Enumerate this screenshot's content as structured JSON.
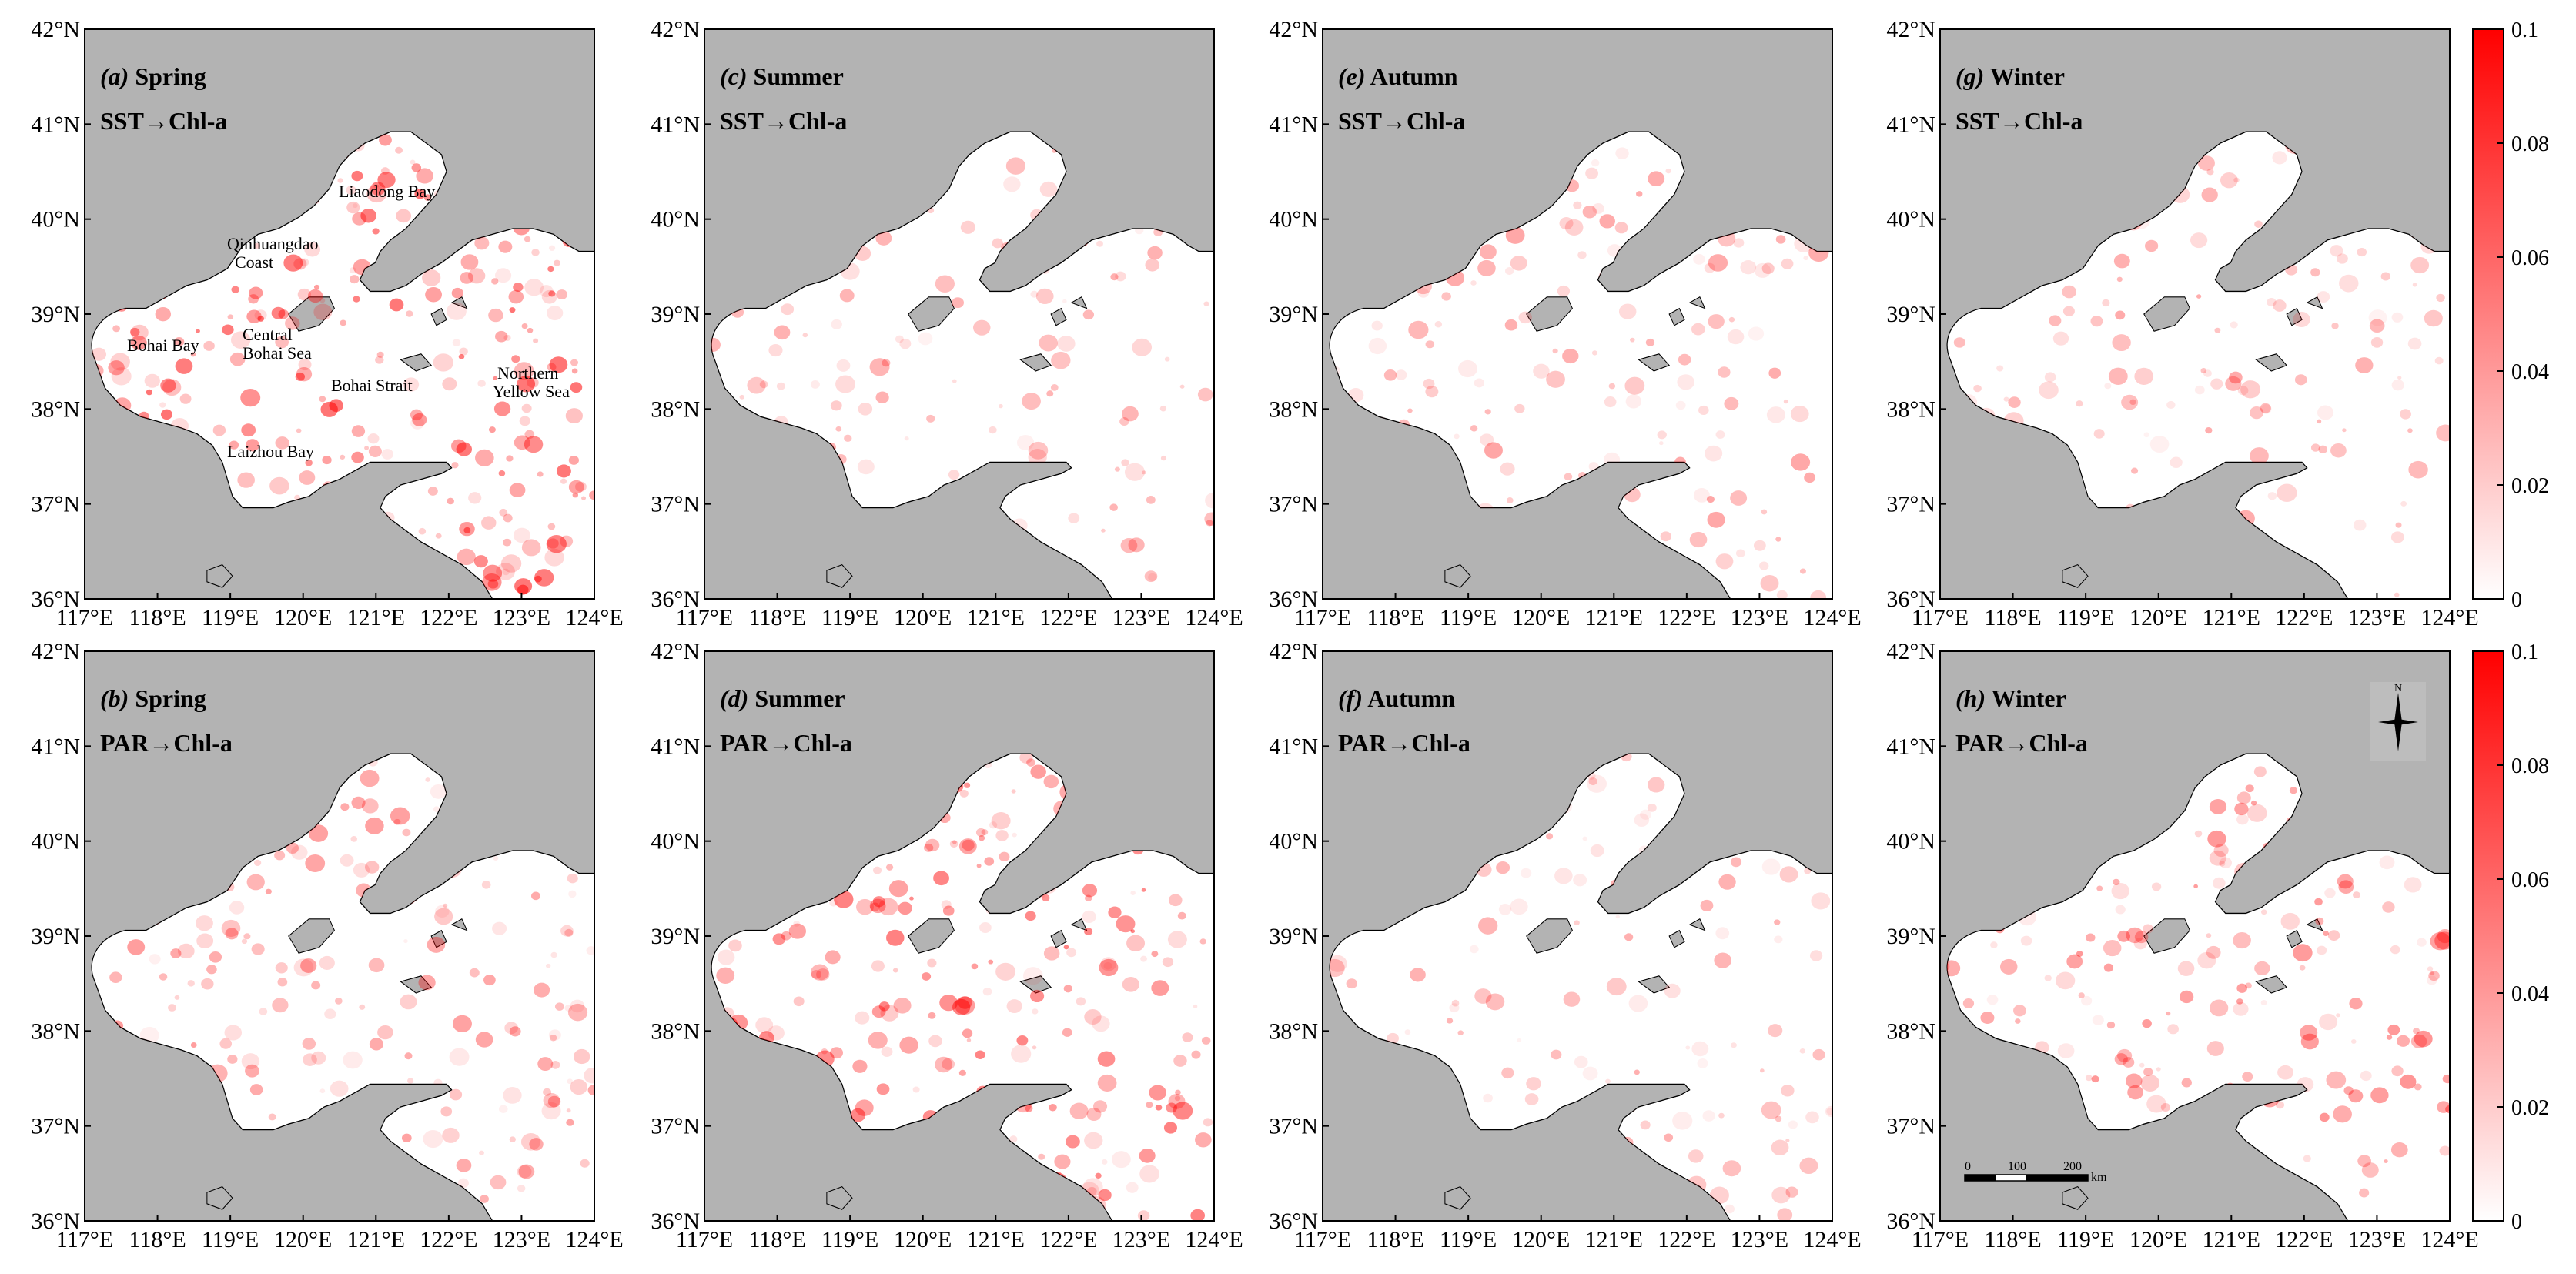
{
  "figure": {
    "x_ticks": [
      "117°E",
      "118°E",
      "119°E",
      "120°E",
      "121°E",
      "122°E",
      "123°E",
      "124°E"
    ],
    "y_ticks": [
      "36°N",
      "37°N",
      "38°N",
      "39°N",
      "40°N",
      "41°N",
      "42°N"
    ],
    "colorbar": {
      "ticks": [
        "0",
        "0.02",
        "0.04",
        "0.06",
        "0.08",
        "0.1"
      ],
      "min": 0,
      "max": 0.1,
      "color_low": "#ffffff",
      "color_high": "#ff0000"
    },
    "colors": {
      "land": "#b3b3b3",
      "sea": "#ffffff",
      "hotspot": "#ff0000"
    },
    "panels": [
      {
        "id": "a",
        "label": "(a)",
        "season": "Spring",
        "relation": "SST→Chl-a",
        "intensity": 0.85
      },
      {
        "id": "c",
        "label": "(c)",
        "season": "Summer",
        "relation": "SST→Chl-a",
        "intensity": 0.25
      },
      {
        "id": "e",
        "label": "(e)",
        "season": "Autumn",
        "relation": "SST→Chl-a",
        "intensity": 0.35
      },
      {
        "id": "g",
        "label": "(g)",
        "season": "Winter",
        "relation": "SST→Chl-a",
        "intensity": 0.3
      },
      {
        "id": "b",
        "label": "(b)",
        "season": "Spring",
        "relation": "PAR→Chl-a",
        "intensity": 0.45
      },
      {
        "id": "d",
        "label": "(d)",
        "season": "Summer",
        "relation": "PAR→Chl-a",
        "intensity": 0.7
      },
      {
        "id": "f",
        "label": "(f)",
        "season": "Autumn",
        "relation": "PAR→Chl-a",
        "intensity": 0.25
      },
      {
        "id": "h",
        "label": "(h)",
        "season": "Winter",
        "relation": "PAR→Chl-a",
        "intensity": 0.5
      }
    ],
    "place_names": {
      "liaodong_bay": "Liaodong Bay",
      "qinhuangdao_1": "Qinhuangdao",
      "qinhuangdao_2": "Coast",
      "bohai_bay": "Bohai Bay",
      "central_1": "Central",
      "central_2": "Bohai Sea",
      "bohai_strait": "Bohai Strait",
      "northern_1": "Northern",
      "northern_2": "Yellow Sea",
      "laizhou_bay": "Laizhou Bay"
    },
    "compass_label": "N",
    "scale_bar": {
      "labels": [
        "0",
        "100",
        "200"
      ],
      "unit": "km"
    }
  }
}
